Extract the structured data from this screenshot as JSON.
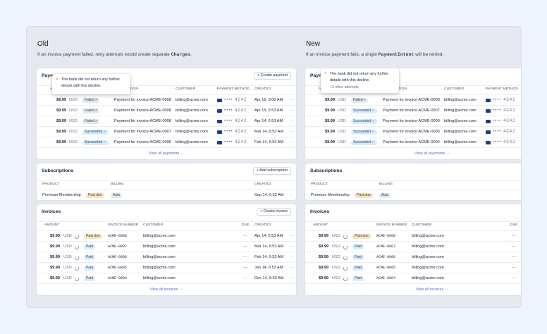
{
  "columns": [
    {
      "title": "Old",
      "subtitle": {
        "before": "If an invoice payment failed, retry attempts would create separate ",
        "code": "Charges",
        "after": "."
      },
      "payments": {
        "title": "Payments",
        "button": "+ Create payment",
        "headers": [
          "AMOUNT",
          "DESCRIPTION",
          "CUSTOMER",
          "PAYMENT METHOD",
          "CREATED"
        ],
        "tooltip": {
          "message": "The bank did not return any further details with this decline."
        },
        "rows": [
          {
            "amount": "$9.99",
            "currency": "USD",
            "status": {
              "text": "Failed",
              "color": "#e3e8ee",
              "icon": "x"
            },
            "description": "Payment for invoice ACME-0008",
            "customer": "billing@acme.com",
            "card": "•••• 4242",
            "created": "Apr 16, 9:00 AM"
          },
          {
            "amount": "$9.99",
            "currency": "USD",
            "status": {
              "text": "Failed",
              "color": "#e3e8ee",
              "icon": "x"
            },
            "description": "Payment for invoice ACME-0008",
            "customer": "billing@acme.com",
            "card": "•••• 4242",
            "created": "Apr 15, 6:53 AM"
          },
          {
            "amount": "$9.99",
            "currency": "USD",
            "status": {
              "text": "Failed",
              "color": "#e3e8ee",
              "icon": "x"
            },
            "description": "Payment for invoice ACME-0008",
            "customer": "billing@acme.com",
            "card": "•••• 4242",
            "created": "Apr 14, 6:53 AM"
          },
          {
            "amount": "$9.99",
            "currency": "USD",
            "status": {
              "text": "Succeeded",
              "color": "#d6ecff",
              "icon": "check"
            },
            "description": "Payment for invoice ACME-0007",
            "customer": "billing@acme.com",
            "card": "•••• 4242",
            "created": "Mar 14, 6:53 AM"
          },
          {
            "amount": "$9.99",
            "currency": "USD",
            "status": {
              "text": "Succeeded",
              "color": "#d6ecff",
              "icon": "check"
            },
            "description": "Payment for invoice ACME-0006",
            "customer": "billing@acme.com",
            "card": "•••• 4242",
            "created": "Feb 14, 6:53 AM"
          }
        ],
        "footer": "View all payments →"
      },
      "subscriptions": {
        "title": "Subscriptions",
        "button": "+ Add subscription",
        "headers": [
          "PRODUCT",
          "BILLING",
          "CREATED"
        ],
        "rows": [
          {
            "product": "Premium Membership",
            "status": {
              "text": "Past due",
              "color": "#f8e5b9"
            },
            "billing": {
              "text": "Auto",
              "color": "#e3e8ee"
            },
            "created": "Sep 14, 6:53 AM"
          }
        ]
      },
      "invoices": {
        "title": "Invoices",
        "button": "+ Create invoice",
        "headers": [
          "AMOUNT",
          "INVOICE NUMBER",
          "CUSTOMER",
          "DUE",
          "CREATED"
        ],
        "rows": [
          {
            "amount": "$9.99",
            "currency": "USD",
            "status": {
              "text": "Past due",
              "color": "#f8e5b9"
            },
            "number": "ACME-0008",
            "customer": "billing@acme.com",
            "due": "—",
            "created": "Apr 14, 6:53 AM"
          },
          {
            "amount": "$9.99",
            "currency": "USD",
            "status": {
              "text": "Paid",
              "color": "#d6ecff"
            },
            "number": "ACME-0007",
            "customer": "billing@acme.com",
            "due": "—",
            "created": "Mar 14, 6:53 AM"
          },
          {
            "amount": "$9.99",
            "currency": "USD",
            "status": {
              "text": "Paid",
              "color": "#d6ecff"
            },
            "number": "ACME-0006",
            "customer": "billing@acme.com",
            "due": "—",
            "created": "Feb 14, 6:53 AM"
          },
          {
            "amount": "$9.99",
            "currency": "USD",
            "status": {
              "text": "Paid",
              "color": "#d6ecff"
            },
            "number": "ACME-0005",
            "customer": "billing@acme.com",
            "due": "—",
            "created": "Jan 14, 6:53 AM"
          },
          {
            "amount": "$9.99",
            "currency": "USD",
            "status": {
              "text": "Paid",
              "color": "#d6ecff"
            },
            "number": "ACME-0004",
            "customer": "billing@acme.com",
            "due": "—",
            "created": "Dec 14, 6:53 AM"
          }
        ],
        "footer": "View all invoices →"
      }
    },
    {
      "title": "New",
      "subtitle": {
        "before": "If an invoice payment fails, a single ",
        "code": "PaymentIntent",
        "after": " will be retried."
      },
      "payments": {
        "title": "Payments",
        "headers": [
          "AMOUNT",
          "DESCRIPTION",
          "CUSTOMER",
          "PAYMENT METHOD"
        ],
        "tooltip": {
          "message": "The bank did not return any further details with this decline.",
          "extra": "+2 other attempts"
        },
        "rows": [
          {
            "amount": "$9.99",
            "currency": "USD",
            "status": {
              "text": "Failed",
              "color": "#e3e8ee",
              "icon": "x"
            },
            "description": "Payment for invoice ACME-0008",
            "customer": "billing@acme.com",
            "card": "•••• 4242"
          },
          {
            "amount": "$9.99",
            "currency": "USD",
            "status": {
              "text": "Succeeded",
              "color": "#d6ecff",
              "icon": "check"
            },
            "description": "Payment for invoice ACME-0007",
            "customer": "billing@acme.com",
            "card": "•••• 4242"
          },
          {
            "amount": "$9.99",
            "currency": "USD",
            "status": {
              "text": "Succeeded",
              "color": "#d6ecff",
              "icon": "check"
            },
            "description": "Payment for invoice ACME-0006",
            "customer": "billing@acme.com",
            "card": "•••• 4242"
          },
          {
            "amount": "$9.99",
            "currency": "USD",
            "status": {
              "text": "Succeeded",
              "color": "#d6ecff",
              "icon": "check"
            },
            "description": "Payment for invoice ACME-0005",
            "customer": "billing@acme.com",
            "card": "•••• 4242"
          },
          {
            "amount": "$9.99",
            "currency": "USD",
            "status": {
              "text": "Succeeded",
              "color": "#d6ecff",
              "icon": "check"
            },
            "description": "Payment for invoice ACME-0004",
            "customer": "billing@acme.com",
            "card": "•••• 4242"
          }
        ],
        "footer": "View all payments →"
      },
      "subscriptions": {
        "title": "Subscriptions",
        "headers": [
          "PRODUCT",
          "BILLING"
        ],
        "rows": [
          {
            "product": "Premium Membership",
            "status": {
              "text": "Past due",
              "color": "#f8e5b9"
            },
            "billing": {
              "text": "Auto",
              "color": "#e3e8ee"
            }
          }
        ]
      },
      "invoices": {
        "title": "Invoices",
        "headers": [
          "AMOUNT",
          "INVOICE NUMBER",
          "CUSTOMER",
          "DUE"
        ],
        "rows": [
          {
            "amount": "$9.99",
            "currency": "USD",
            "status": {
              "text": "Past due",
              "color": "#f8e5b9"
            },
            "number": "ACME-0008",
            "customer": "billing@acme.com",
            "due": "—"
          },
          {
            "amount": "$9.99",
            "currency": "USD",
            "status": {
              "text": "Paid",
              "color": "#d6ecff"
            },
            "number": "ACME-0007",
            "customer": "billing@acme.com",
            "due": "—"
          },
          {
            "amount": "$9.99",
            "currency": "USD",
            "status": {
              "text": "Paid",
              "color": "#d6ecff"
            },
            "number": "ACME-0006",
            "customer": "billing@acme.com",
            "due": "—"
          },
          {
            "amount": "$9.99",
            "currency": "USD",
            "status": {
              "text": "Paid",
              "color": "#d6ecff"
            },
            "number": "ACME-0005",
            "customer": "billing@acme.com",
            "due": "—"
          },
          {
            "amount": "$9.99",
            "currency": "USD",
            "status": {
              "text": "Paid",
              "color": "#d6ecff"
            },
            "number": "ACME-0004",
            "customer": "billing@acme.com",
            "due": "—"
          }
        ],
        "footer": "View all invoices →"
      }
    }
  ]
}
